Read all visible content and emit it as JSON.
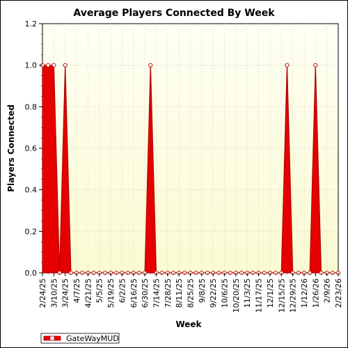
{
  "chart_data": {
    "type": "area",
    "title": "Average Players Connected By Week",
    "xlabel": "Week",
    "ylabel": "Players Connected",
    "ylim": [
      0,
      1.2
    ],
    "yticks": [
      "0.0",
      "0.2",
      "0.4",
      "0.6",
      "0.8",
      "1.0",
      "1.2"
    ],
    "grid": true,
    "legend_position": "bottom-left",
    "x_tick_labels": [
      "2/24/25",
      "3/10/25",
      "3/24/25",
      "4/7/25",
      "4/21/25",
      "5/5/25",
      "5/19/25",
      "6/2/25",
      "6/16/25",
      "6/30/25",
      "7/14/25",
      "7/28/25",
      "8/11/25",
      "8/25/25",
      "9/8/25",
      "9/22/25",
      "10/6/25",
      "10/20/25",
      "11/3/25",
      "11/17/25",
      "12/1/25",
      "12/15/25",
      "12/29/25",
      "1/12/26",
      "1/26/26",
      "2/9/26",
      "2/23/26"
    ],
    "categories": [
      "2/24/25",
      "3/3/25",
      "3/10/25",
      "3/17/25",
      "3/24/25",
      "3/31/25",
      "4/7/25",
      "4/14/25",
      "4/21/25",
      "4/28/25",
      "5/5/25",
      "5/12/25",
      "5/19/25",
      "5/26/25",
      "6/2/25",
      "6/9/25",
      "6/16/25",
      "6/23/25",
      "6/30/25",
      "7/7/25",
      "7/14/25",
      "7/21/25",
      "7/28/25",
      "8/4/25",
      "8/11/25",
      "8/18/25",
      "8/25/25",
      "9/1/25",
      "9/8/25",
      "9/15/25",
      "9/22/25",
      "9/29/25",
      "10/6/25",
      "10/13/25",
      "10/20/25",
      "10/27/25",
      "11/3/25",
      "11/10/25",
      "11/17/25",
      "11/24/25",
      "12/1/25",
      "12/8/25",
      "12/15/25",
      "12/22/25",
      "12/29/25",
      "1/5/26",
      "1/12/26",
      "1/19/26",
      "1/26/26",
      "2/2/26",
      "2/9/26",
      "2/16/26",
      "2/23/26"
    ],
    "series": [
      {
        "name": "GateWayMUD",
        "color": "#e60000",
        "values": [
          1,
          1,
          1,
          0,
          1,
          0,
          0,
          0,
          0,
          0,
          0,
          0,
          0,
          0,
          0,
          0,
          0,
          0,
          0,
          1,
          0,
          0,
          0,
          0,
          0,
          0,
          0,
          0,
          0,
          0,
          0,
          0,
          0,
          0,
          0,
          0,
          0,
          0,
          0,
          0,
          0,
          0,
          0,
          1,
          0,
          0,
          0,
          0,
          1,
          0,
          0,
          0,
          0
        ]
      }
    ]
  },
  "colors": {
    "plot_background_top": "#fffff0",
    "plot_background_bottom": "#fafad2",
    "series_fill": "#e60000",
    "series_outline": "#b00000"
  }
}
